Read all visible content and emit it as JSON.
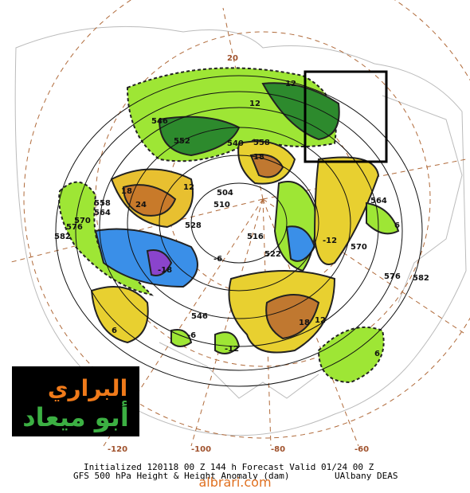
{
  "footer": {
    "line1": "Initialized 120118 00 Z  144 h Forecast Valid 01/24 00 Z",
    "line2": "GFS 500 hPa Height & Height Anomaly (dam)",
    "credit": "UAlbany DEAS"
  },
  "watermark": "albrari.com",
  "logo": {
    "top": "البراري",
    "bottom": "أبو ميعاد"
  },
  "longitudes": [
    "-120",
    "-100",
    "-80",
    "-60",
    "20"
  ],
  "contour_labels": [
    "546",
    "558",
    "564",
    "570",
    "576",
    "582",
    "504",
    "510",
    "516",
    "522",
    "528",
    "540",
    "546",
    "552",
    "558",
    "564",
    "570",
    "576",
    "582",
    "12",
    "12",
    "18",
    "24",
    "18",
    "12",
    "6",
    "6",
    "6",
    "-6",
    "-12",
    "-18",
    "-6",
    "-12",
    "18",
    "12"
  ]
}
